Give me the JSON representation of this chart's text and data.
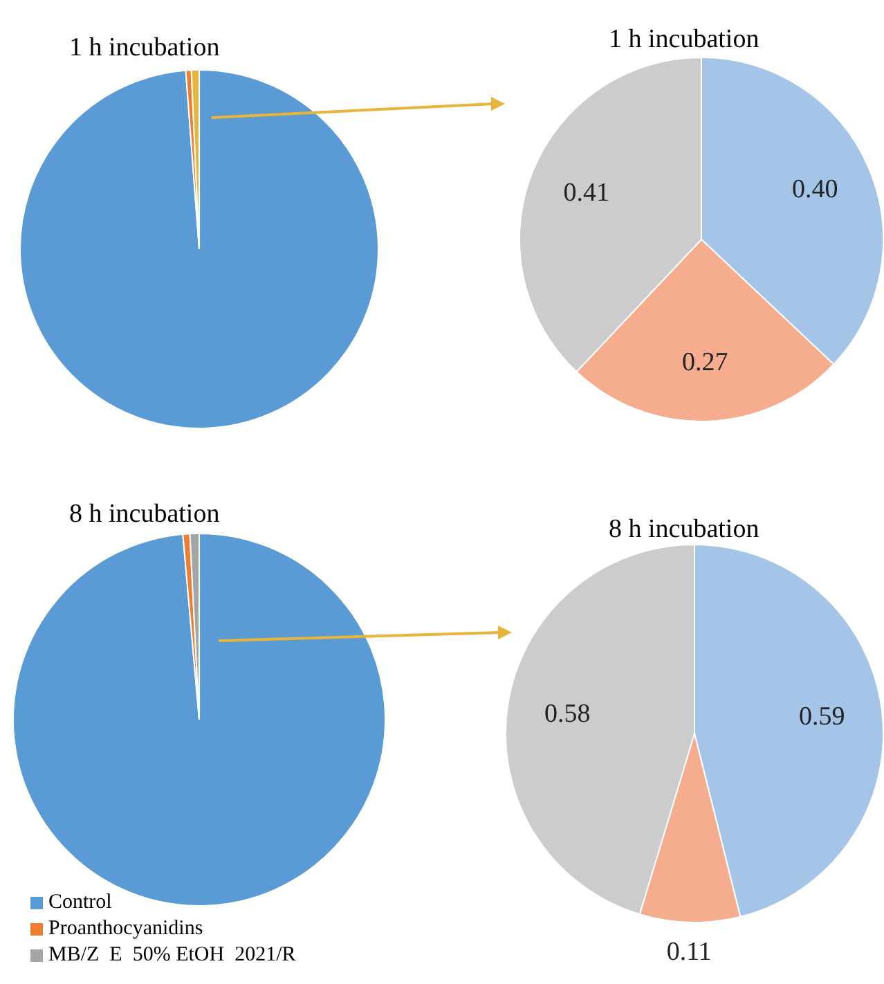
{
  "chart_data": [
    {
      "type": "pie",
      "title": "1 h incubation",
      "categories": [
        null,
        null,
        null
      ],
      "values": [
        98.8,
        0.5,
        0.7
      ],
      "colors": [
        "#5b9bd5",
        "#ed7d31",
        "#e8b53c"
      ]
    },
    {
      "type": "pie",
      "title": "1 h incubation",
      "categories": [
        null,
        null,
        null
      ],
      "values": [
        0.4,
        0.27,
        0.41
      ],
      "value_labels": [
        "0.40",
        "0.27",
        "0.41"
      ],
      "colors": [
        "#a4c4e8",
        "#f5ad8e",
        "#cccccc"
      ]
    },
    {
      "type": "pie",
      "title": "8 h incubation",
      "categories": [
        "Control",
        "Proanthocyanidins",
        "MB/Z  E  50% EtOH  2021/R"
      ],
      "values": [
        98.6,
        0.6,
        0.8
      ],
      "colors": [
        "#5b9bd5",
        "#ed7d31",
        "#a5a5a5"
      ],
      "legend": "bottom left"
    },
    {
      "type": "pie",
      "title": "8 h incubation",
      "categories": [
        null,
        null,
        null
      ],
      "values": [
        0.59,
        0.11,
        0.58
      ],
      "value_labels": [
        "0.59",
        "0.11",
        "0.58"
      ],
      "colors": [
        "#a4c4e8",
        "#f5ad8e",
        "#cccccc"
      ]
    }
  ]
}
